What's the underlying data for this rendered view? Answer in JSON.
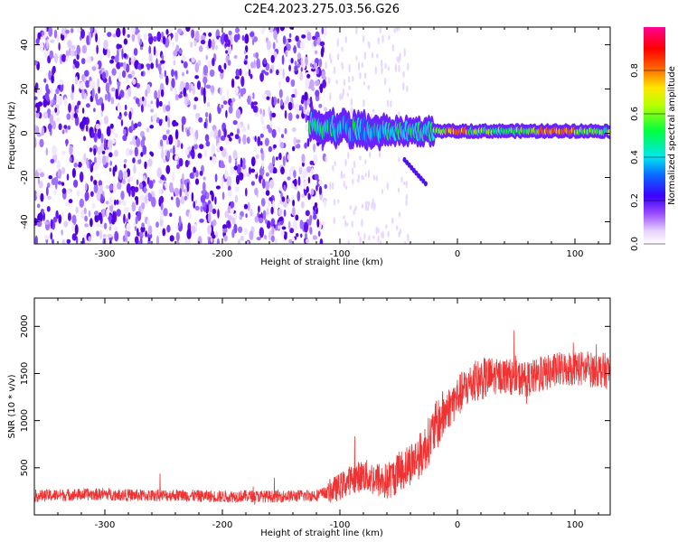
{
  "title": "C2E4.2023.275.03.56.G26",
  "chart_data": [
    {
      "type": "heatmap",
      "xlabel": "Height of straight line (km)",
      "ylabel": "Frequency (Hz)",
      "xlim": [
        -360,
        130
      ],
      "ylim": [
        -50,
        48
      ],
      "xticks": [
        -300,
        -200,
        -100,
        0,
        100
      ],
      "yticks": [
        -40,
        -20,
        0,
        20,
        40
      ],
      "colorbar": {
        "label": "Normalized spectral amplitude",
        "range": [
          0,
          1
        ],
        "ticks": [
          0.0,
          0.2,
          0.4,
          0.6,
          0.8
        ],
        "colormap": "white-purple-blue-cyan-green-yellow-red-magenta"
      },
      "description_points": [
        {
          "height_km": -120,
          "frequency_hz": 5,
          "amplitude": 0.45
        },
        {
          "height_km": -100,
          "frequency_hz": 2,
          "amplitude": 0.45
        },
        {
          "height_km": -80,
          "frequency_hz": -2,
          "amplitude": 0.45
        },
        {
          "height_km": -50,
          "frequency_hz": 3,
          "amplitude": 0.5
        },
        {
          "height_km": -30,
          "frequency_hz": -17,
          "amplitude": 0.2
        },
        {
          "height_km": 0,
          "frequency_hz": 0,
          "amplitude": 0.85
        },
        {
          "height_km": 50,
          "frequency_hz": 1,
          "amplitude": 0.6
        },
        {
          "height_km": 90,
          "frequency_hz": 1,
          "amplitude": 0.85
        },
        {
          "height_km": 120,
          "frequency_hz": 1,
          "amplitude": 0.7
        }
      ],
      "grid": false
    },
    {
      "type": "line",
      "xlabel": "Height of straight line (km)",
      "ylabel": "SNR (10 * v/v)",
      "xlim": [
        -360,
        130
      ],
      "ylim": [
        0,
        2300
      ],
      "xticks": [
        -300,
        -200,
        -100,
        0,
        100
      ],
      "yticks": [
        500,
        1000,
        1500,
        2000
      ],
      "color": "#f03232",
      "series": [
        {
          "x": [
            -360,
            -340,
            -320,
            -300,
            -280,
            -260,
            -240,
            -220,
            -200,
            -180,
            -160,
            -140,
            -120,
            -110,
            -100,
            -90,
            -80,
            -70,
            -60,
            -50,
            -40,
            -30,
            -20,
            -10,
            0,
            10,
            20,
            30,
            40,
            50,
            60,
            70,
            80,
            90,
            100,
            110,
            120,
            130
          ],
          "values": [
            200,
            210,
            215,
            220,
            210,
            205,
            210,
            200,
            195,
            200,
            195,
            200,
            210,
            240,
            300,
            380,
            420,
            380,
            350,
            450,
            550,
            650,
            900,
            1100,
            1250,
            1380,
            1440,
            1460,
            1480,
            1450,
            1440,
            1480,
            1520,
            1550,
            1560,
            1540,
            1540,
            1520
          ]
        }
      ],
      "grid": false
    }
  ]
}
